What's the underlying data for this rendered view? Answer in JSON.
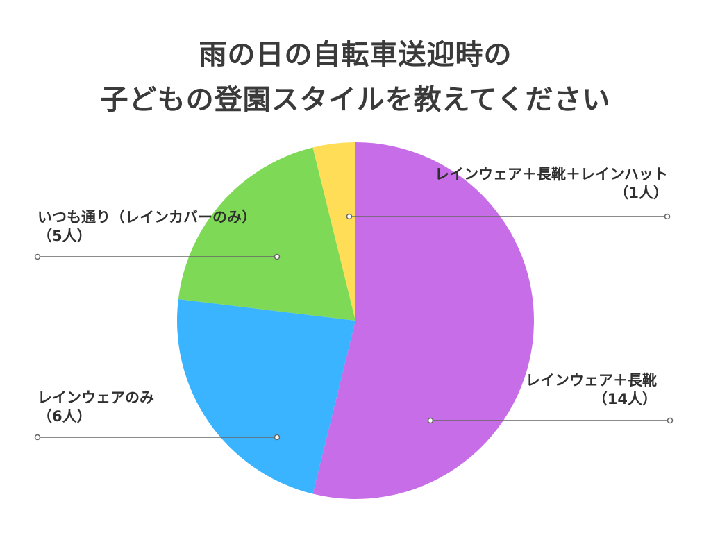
{
  "title": {
    "line1": "雨の日の自転車送迎時の",
    "line2": "子どもの登園スタイルを教えてください"
  },
  "chart_data": {
    "type": "pie",
    "title": "雨の日の自転車送迎時の子どもの登園スタイルを教えてください",
    "start_angle_deg": 0,
    "direction": "clockwise",
    "slices": [
      {
        "label": "レインウェア＋長靴",
        "count_label": "（14人）",
        "value": 14,
        "color": "#c86de8"
      },
      {
        "label": "レインウェアのみ",
        "count_label": "（6人）",
        "value": 6,
        "color": "#3ab4ff"
      },
      {
        "label": "いつも通り（レインカバーのみ）",
        "count_label": "（5人）",
        "value": 5,
        "color": "#7ed957"
      },
      {
        "label": "レインウェア＋長靴＋レインハット",
        "count_label": "（1人）",
        "value": 1,
        "color": "#ffdd57"
      }
    ],
    "legend": "none"
  }
}
